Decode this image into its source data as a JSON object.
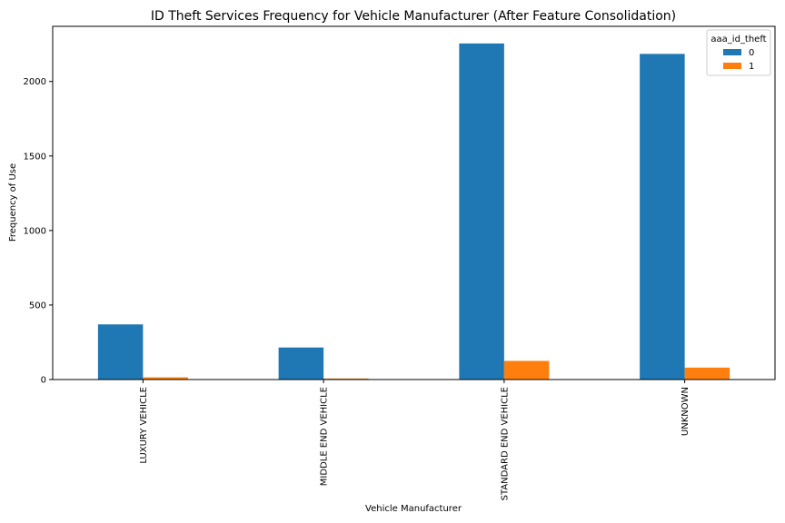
{
  "chart_data": {
    "type": "bar",
    "title": "ID Theft Services Frequency for Vehicle Manufacturer (After Feature Consolidation)",
    "xlabel": "Vehicle Manufacturer",
    "ylabel": "Frequency of Use",
    "categories": [
      "LUXURY VEHICLE",
      "MIDDLE END VEHICLE",
      "STANDARD END VEHICLE",
      "UNKNOWN"
    ],
    "series": [
      {
        "name": "0",
        "values": [
          370,
          215,
          2255,
          2185
        ],
        "color": "#1f77b4"
      },
      {
        "name": "1",
        "values": [
          15,
          7,
          125,
          80
        ],
        "color": "#ff7f0e"
      }
    ],
    "ylim": [
      0,
      2370
    ],
    "yticks": [
      0,
      500,
      1000,
      1500,
      2000
    ],
    "grid": false,
    "legend": {
      "title": "aaa_id_theft",
      "position": "top-right"
    }
  }
}
